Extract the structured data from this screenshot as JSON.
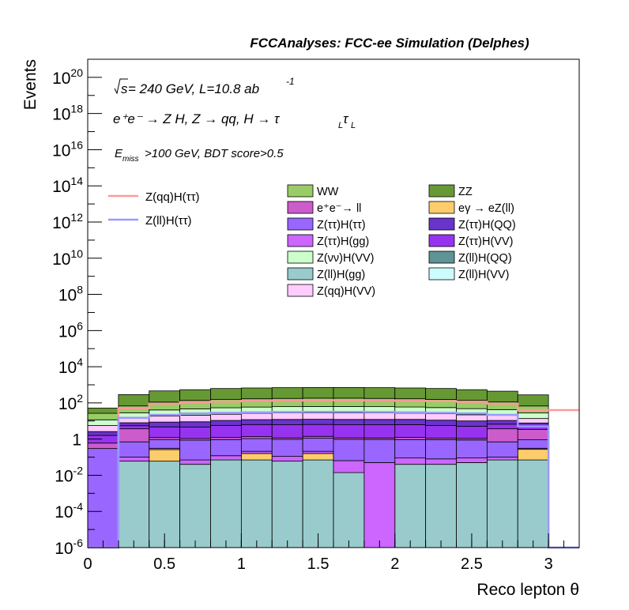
{
  "chart_data": {
    "type": "bar",
    "stacked": true,
    "log_y": true,
    "title": "FCCAnalyses: FCC-ee Simulation (Delphes)",
    "xlabel": "Reco lepton θ",
    "ylabel": "Events",
    "xlim": [
      0,
      3.2
    ],
    "ylim": [
      1e-06,
      1e+21
    ],
    "x_ticks": [
      {
        "value": 0,
        "label": "0"
      },
      {
        "value": 0.5,
        "label": "0.5"
      },
      {
        "value": 1,
        "label": "1"
      },
      {
        "value": 1.5,
        "label": "1.5"
      },
      {
        "value": 2,
        "label": "2"
      },
      {
        "value": 2.5,
        "label": "2.5"
      },
      {
        "value": 3,
        "label": "3"
      }
    ],
    "y_ticks": [
      {
        "exp": -6,
        "base": "10",
        "sup": "-6"
      },
      {
        "exp": -4,
        "base": "10",
        "sup": "-4"
      },
      {
        "exp": -2,
        "base": "10",
        "sup": "-2"
      },
      {
        "exp": 0,
        "base": "1",
        "sup": ""
      },
      {
        "exp": 2,
        "base": "10",
        "sup": "2"
      },
      {
        "exp": 4,
        "base": "10",
        "sup": "4"
      },
      {
        "exp": 6,
        "base": "10",
        "sup": "6"
      },
      {
        "exp": 8,
        "base": "10",
        "sup": "8"
      },
      {
        "exp": 10,
        "base": "10",
        "sup": "10"
      },
      {
        "exp": 12,
        "base": "10",
        "sup": "12"
      },
      {
        "exp": 14,
        "base": "10",
        "sup": "14"
      },
      {
        "exp": 16,
        "base": "10",
        "sup": "16"
      },
      {
        "exp": 18,
        "base": "10",
        "sup": "18"
      },
      {
        "exp": 20,
        "base": "10",
        "sup": "20"
      }
    ],
    "bin_edges": [
      0,
      0.2,
      0.4,
      0.6,
      0.8,
      1.0,
      1.2,
      1.4,
      1.6,
      1.8,
      2.0,
      2.2,
      2.4,
      2.6,
      2.8,
      3.0,
      3.2
    ],
    "annotations": {
      "sqrt_s": "s",
      "energy_lumi": " = 240 GeV, L=10.8 ab",
      "lumi_exp": "-1",
      "process": "e⁺e⁻ → Z H, Z → qq, H → τ",
      "tau_sub": "L",
      "tau2": "τ",
      "cut_E": "E",
      "cut_sub": "miss",
      "cut_rest": ">100 GeV, BDT score>0.5"
    },
    "stack_series": [
      {
        "name": "Z(ll)H(VV)",
        "color": "#cdfcfd",
        "values": [
          0,
          0,
          0,
          0,
          0,
          0,
          0,
          0,
          0,
          0,
          0,
          0,
          0,
          0,
          0,
          0
        ]
      },
      {
        "name": "Z(ll)H(QQ)",
        "color": "#5f9396",
        "values": [
          0,
          0,
          0,
          0,
          0,
          0,
          0,
          0,
          0,
          0,
          0,
          0,
          0,
          0,
          0,
          0
        ]
      },
      {
        "name": "Z(ll)H(gg)",
        "color": "#99cbcc",
        "values": [
          0,
          0.06,
          0.06,
          0.04,
          0.07,
          0.07,
          0.06,
          0.07,
          0.014,
          0,
          0.04,
          0.04,
          0.05,
          0.07,
          0.07,
          0
        ]
      },
      {
        "name": "eγ → eZ(ll)",
        "color": "#fdcd6b",
        "values": [
          0,
          0,
          0.2,
          0,
          0,
          0.09,
          0,
          0.09,
          0,
          0,
          0,
          0,
          0,
          0,
          0.2,
          0
        ]
      },
      {
        "name": "Z(ττ)H(gg)",
        "color": "#cc66ff",
        "values": [
          0,
          0.04,
          0.05,
          0.03,
          0.05,
          0.05,
          0.05,
          0.05,
          0.05,
          0.05,
          0.05,
          0.04,
          0.04,
          0.03,
          0.04,
          0
        ]
      },
      {
        "name": "Z(ττ)H(ττ)",
        "color": "#9966ff",
        "values": [
          0.3,
          0.6,
          0.6,
          0.8,
          0.8,
          0.85,
          0.85,
          0.9,
          0.9,
          0.9,
          0.85,
          0.85,
          0.8,
          0.6,
          0.6,
          0
        ]
      },
      {
        "name": "e⁺e⁻→ ll",
        "color": "#cc5ccc",
        "values": [
          0.3,
          3,
          0.3,
          0.2,
          0.3,
          0.3,
          0.2,
          0.3,
          0.2,
          0.2,
          0.3,
          0.2,
          0.2,
          3,
          2.5,
          0
        ]
      },
      {
        "name": "Z(ττ)H(VV)",
        "color": "#9733f0",
        "values": [
          1,
          1.8,
          3.5,
          3.5,
          4.5,
          5,
          5,
          5,
          5,
          5,
          5,
          4.5,
          4,
          3,
          1.8,
          0
        ]
      },
      {
        "name": "Z(ττ)H(QQ)",
        "color": "#6933cc",
        "values": [
          1,
          2.5,
          4,
          4.5,
          5,
          5.5,
          6,
          6,
          6,
          6,
          6,
          5.5,
          5,
          4,
          2.5,
          0
        ]
      },
      {
        "name": "Z(qq)H(VV)",
        "color": "#ffccff",
        "values": [
          3,
          6,
          10,
          12,
          13,
          15,
          16,
          16,
          16,
          16,
          15,
          14,
          12,
          10,
          6,
          0
        ]
      },
      {
        "name": "Z(νν)H(VV)",
        "color": "#ccffcc",
        "values": [
          6,
          14,
          22,
          26,
          30,
          32,
          34,
          35,
          35,
          34,
          32,
          30,
          26,
          22,
          14,
          0
        ]
      },
      {
        "name": "WW",
        "color": "#99cc66",
        "values": [
          15,
          40,
          70,
          90,
          100,
          110,
          115,
          120,
          120,
          115,
          110,
          100,
          90,
          70,
          40,
          0
        ]
      },
      {
        "name": "ZZ",
        "color": "#669933",
        "values": [
          25,
          220,
          350,
          400,
          470,
          500,
          520,
          530,
          530,
          520,
          500,
          470,
          400,
          330,
          210,
          0
        ]
      }
    ],
    "signal_series": [
      {
        "name": "Z(qq)H(ττ)",
        "color": "#ff9999",
        "values": [
          0,
          50,
          90,
          110,
          120,
          130,
          135,
          140,
          140,
          135,
          130,
          125,
          115,
          90,
          40,
          40
        ]
      },
      {
        "name": "Z(ll)H(ττ)",
        "color": "#9999ff",
        "values": [
          0,
          15,
          22,
          26,
          28,
          30,
          31,
          32,
          32,
          31,
          30,
          28,
          26,
          22,
          5,
          1e-06
        ]
      }
    ],
    "legend": {
      "left": [
        "Z(qq)H(ττ)",
        "Z(ll)H(ττ)"
      ],
      "col1": [
        "WW",
        "e⁺e⁻→ ll",
        "Z(ττ)H(ττ)",
        "Z(ττ)H(gg)",
        "Z(νν)H(VV)",
        "Z(ll)H(gg)",
        "Z(qq)H(VV)"
      ],
      "col2": [
        "ZZ",
        "eγ → eZ(ll)",
        "Z(ττ)H(QQ)",
        "Z(ττ)H(VV)",
        "Z(ll)H(QQ)",
        "Z(ll)H(VV)"
      ]
    }
  }
}
